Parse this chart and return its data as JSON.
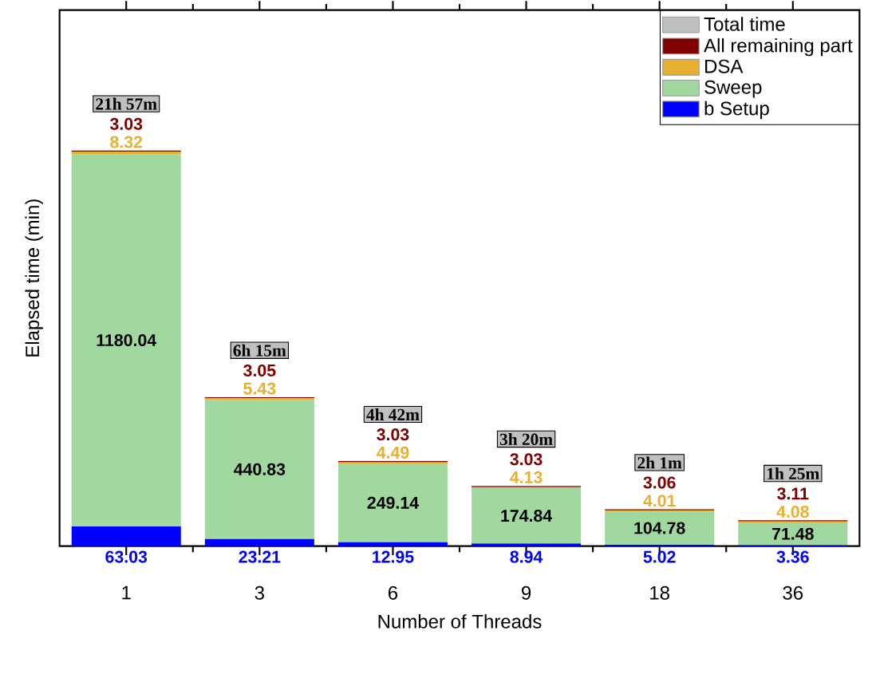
{
  "chart_data": {
    "type": "bar",
    "stacked": true,
    "xlabel": "Number of Threads",
    "ylabel": "Elapsed time (min)",
    "categories": [
      "1",
      "3",
      "6",
      "9",
      "18",
      "36"
    ],
    "series": [
      {
        "name": "b Setup",
        "color": "#0000ff",
        "values": [
          63.03,
          23.21,
          12.95,
          8.94,
          5.02,
          3.36
        ]
      },
      {
        "name": "Sweep",
        "color": "#a0d8a0",
        "values": [
          1180.04,
          440.83,
          249.14,
          174.84,
          104.78,
          71.48
        ]
      },
      {
        "name": "DSA",
        "color": "#e8b030",
        "values": [
          8.32,
          5.43,
          4.49,
          4.13,
          4.01,
          4.08
        ]
      },
      {
        "name": "All remaining part",
        "color": "#800000",
        "values": [
          3.03,
          3.05,
          3.03,
          3.03,
          3.06,
          3.11
        ]
      },
      {
        "name": "Total time",
        "color": "#c0c0c0",
        "values": [
          null,
          null,
          null,
          null,
          null,
          null
        ]
      }
    ],
    "totals": [
      "21h 57m",
      "6h 15m",
      "4h 42m",
      "3h 20m",
      "2h 1m",
      "1h 25m"
    ],
    "ylim": [
      0,
      1700
    ],
    "tick_labels": "x",
    "data_labels": true,
    "legend": "top right",
    "grid": false
  }
}
